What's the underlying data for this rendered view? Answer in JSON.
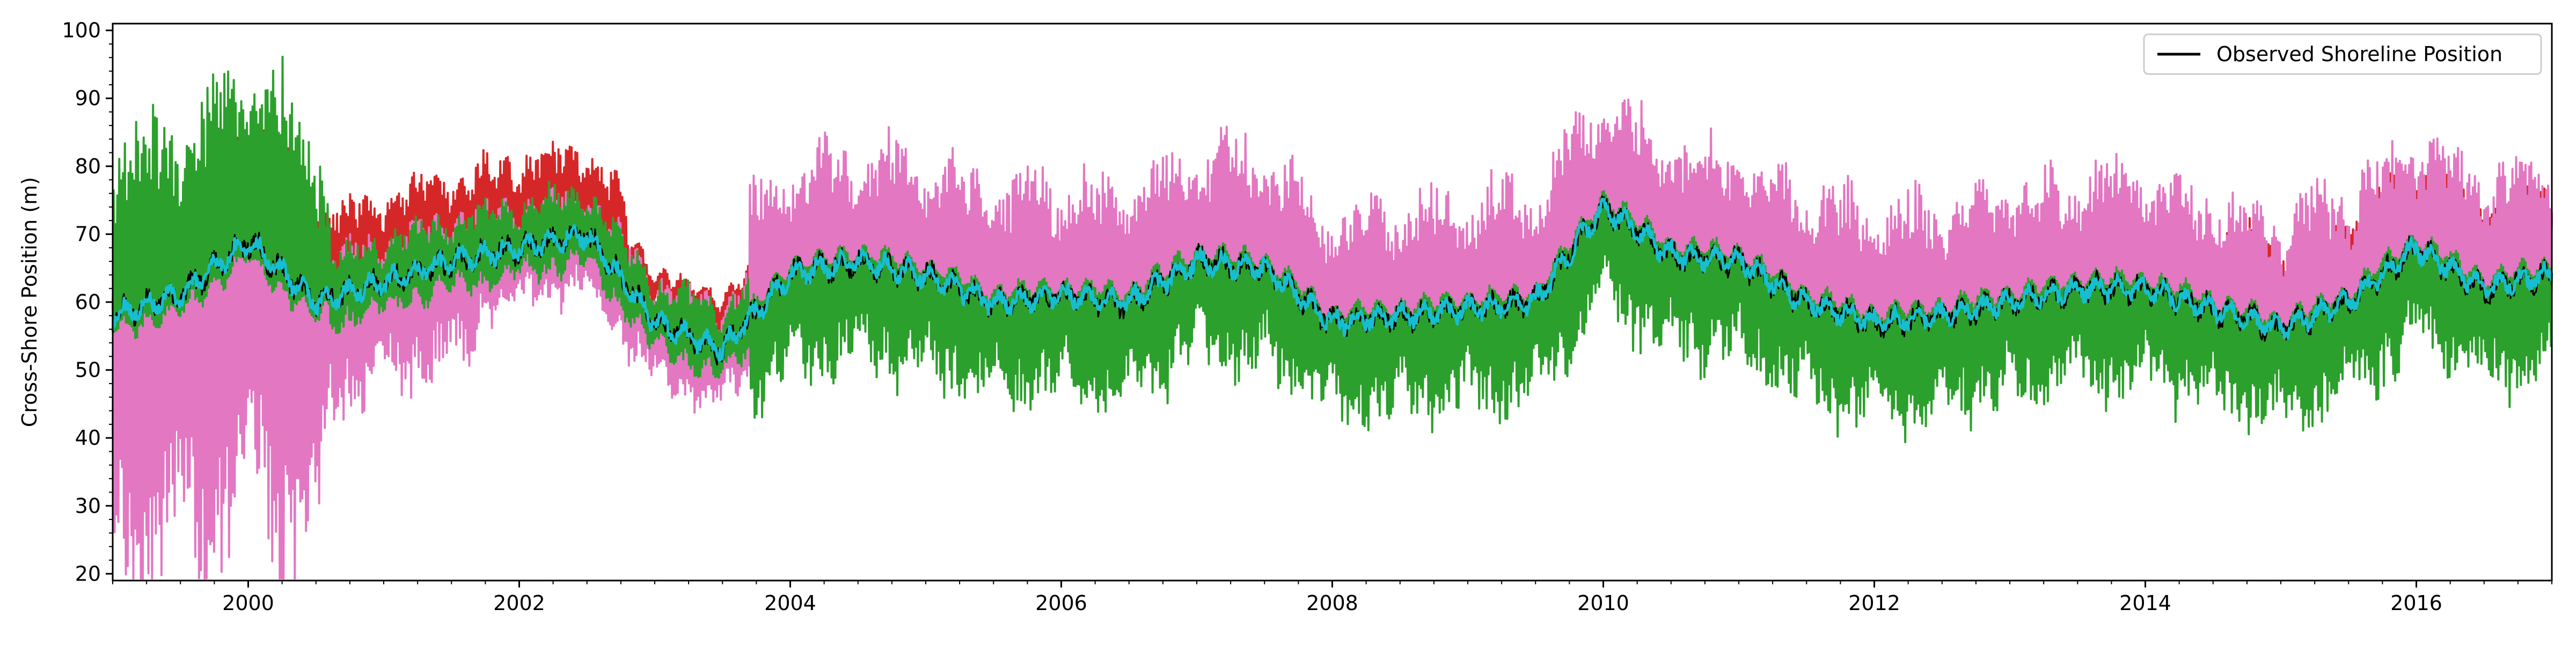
{
  "chart_data": {
    "type": "line",
    "title": "",
    "xlabel": "",
    "ylabel": "Cross-Shore Position (m)",
    "xlim": [
      "1999-01-01",
      "2017-01-01"
    ],
    "ylim": [
      19,
      101
    ],
    "xticks": [
      "2000",
      "2002",
      "2004",
      "2006",
      "2008",
      "2010",
      "2012",
      "2014",
      "2016"
    ],
    "yticks": [
      20,
      30,
      40,
      50,
      60,
      70,
      80,
      90,
      100
    ],
    "grid": false,
    "legend": {
      "placement": "top-right",
      "entries": [
        "Observed Shoreline Position"
      ]
    },
    "series": [
      {
        "name": "Observed Shoreline Position",
        "color": "#000000",
        "values_env": [
          [
            "1999-01-01",
            58
          ],
          [
            "1999-07-01",
            61
          ],
          [
            "2000-01-01",
            69
          ],
          [
            "2000-07-01",
            60
          ],
          [
            "2001-01-01",
            63
          ],
          [
            "2001-07-01",
            66
          ],
          [
            "2002-01-01",
            68
          ],
          [
            "2002-07-01",
            70
          ],
          [
            "2003-01-01",
            57
          ],
          [
            "2003-07-01",
            53
          ],
          [
            "2004-01-01",
            64
          ],
          [
            "2004-07-01",
            66
          ],
          [
            "2005-01-01",
            64
          ],
          [
            "2005-07-01",
            60
          ],
          [
            "2006-01-01",
            61
          ],
          [
            "2006-07-01",
            60
          ],
          [
            "2007-01-01",
            66
          ],
          [
            "2007-07-01",
            65
          ],
          [
            "2008-01-01",
            57
          ],
          [
            "2008-07-01",
            58
          ],
          [
            "2009-01-01",
            59
          ],
          [
            "2009-07-01",
            60
          ],
          [
            "2010-01-01",
            74
          ],
          [
            "2010-07-01",
            67
          ],
          [
            "2011-01-01",
            66
          ],
          [
            "2011-07-01",
            60
          ],
          [
            "2012-01-01",
            57
          ],
          [
            "2012-07-01",
            58
          ],
          [
            "2013-01-01",
            60
          ],
          [
            "2013-07-01",
            62
          ],
          [
            "2014-01-01",
            62
          ],
          [
            "2014-07-01",
            59
          ],
          [
            "2015-01-01",
            56
          ],
          [
            "2015-07-01",
            60
          ],
          [
            "2016-01-01",
            68
          ],
          [
            "2016-07-01",
            62
          ],
          [
            "2017-01-01",
            64
          ]
        ]
      }
    ]
  },
  "colors": {
    "red": "#d62728",
    "green": "#2ca02c",
    "pink": "#e377c2",
    "cyan": "#17becf",
    "brown": "#8c564b",
    "black": "#000000"
  }
}
